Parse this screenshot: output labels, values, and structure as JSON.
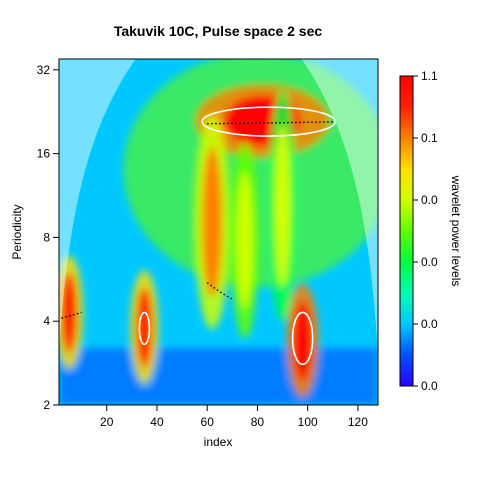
{
  "chart_data": {
    "type": "heatmap",
    "title": "Takuvik 10C, Pulse space 2 sec",
    "xlabel": "index",
    "ylabel": "Periodicity",
    "colorbar_label": "wavelet power levels",
    "x": {
      "range": [
        1,
        128
      ],
      "ticks": [
        20,
        40,
        60,
        80,
        100,
        120
      ],
      "tick_labels": [
        "20",
        "40",
        "60",
        "80",
        "100",
        "120"
      ]
    },
    "y": {
      "scale": "log2",
      "range": [
        2,
        35
      ],
      "ticks": [
        2,
        4,
        8,
        16,
        32
      ],
      "tick_labels": [
        "2",
        "4",
        "8",
        "16",
        "32"
      ]
    },
    "colorbar": {
      "tick_labels": [
        "0.0",
        "0.0",
        "0.0",
        "0.0",
        "0.1",
        "1.1"
      ],
      "colors": [
        "#2a00ff",
        "#0050ff",
        "#00c8ff",
        "#00ffb0",
        "#00ff40",
        "#60ff00",
        "#d0ff00",
        "#ffe000",
        "#ff8000",
        "#ff2000",
        "#ff0000"
      ]
    },
    "power_features": [
      {
        "label": "strong band",
        "x_center": 82,
        "x_width": 38,
        "period": 21,
        "level": 1.0
      },
      {
        "label": "burst",
        "x_center": 5,
        "x_width": 8,
        "period": 4.3,
        "level": 0.85
      },
      {
        "label": "burst",
        "x_center": 35,
        "x_width": 8,
        "period": 3.8,
        "level": 0.85
      },
      {
        "label": "burst",
        "x_center": 98,
        "x_width": 9,
        "period": 3.4,
        "level": 0.95
      },
      {
        "label": "column",
        "x_center": 62,
        "x_width": 10,
        "period": 7,
        "level": 0.75
      },
      {
        "label": "column",
        "x_center": 75,
        "x_width": 8,
        "period": 6,
        "level": 0.6
      },
      {
        "label": "column",
        "x_center": 90,
        "x_width": 8,
        "period": 8,
        "level": 0.55
      }
    ],
    "significance_contours": [
      {
        "x_range": [
          58,
          111
        ],
        "period_range": [
          18.5,
          23.5
        ]
      },
      {
        "x_range": [
          33,
          37
        ],
        "period_range": [
          3.3,
          4.3
        ]
      },
      {
        "x_range": [
          94,
          102
        ],
        "period_range": [
          2.8,
          4.3
        ]
      }
    ],
    "ridge_lines": [
      {
        "points": [
          [
            60,
            20.5
          ],
          [
            80,
            20.6
          ],
          [
            110,
            20.8
          ]
        ]
      },
      {
        "points": [
          [
            2,
            4.1
          ],
          [
            10,
            4.3
          ]
        ]
      },
      {
        "points": [
          [
            60,
            5.5
          ],
          [
            65,
            5.1
          ],
          [
            70,
            4.8
          ]
        ]
      }
    ],
    "cone_of_influence": true
  }
}
